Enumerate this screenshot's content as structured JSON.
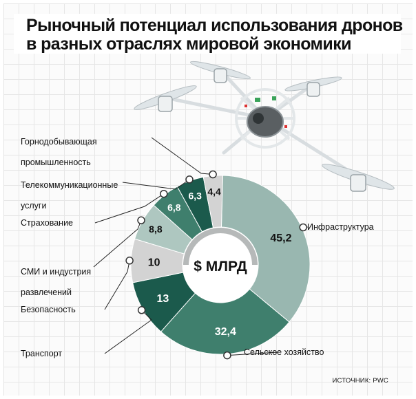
{
  "title_lines": [
    "Рыночный потенциал использования дронов",
    "в разных отраслях мировой экономики"
  ],
  "center_label": "$ МЛРД",
  "source": "ИСТОЧНИК: PWC",
  "chart_data": {
    "type": "donut",
    "title": "Рыночный потенциал использования дронов в разных отраслях мировой экономики",
    "unit": "$ МЛРД",
    "start_angle_deg": 1.5,
    "segments": [
      {
        "label": "Инфраструктура",
        "value": 45.2,
        "value_text": "45,2",
        "color": "#99b7b0",
        "text_color": "#111111"
      },
      {
        "label": "Сельское хозяйство",
        "value": 32.4,
        "value_text": "32,4",
        "color": "#3f7f6d",
        "text_color": "#ffffff"
      },
      {
        "label": "Транспорт",
        "value": 13,
        "value_text": "13",
        "color": "#1b5a4c",
        "text_color": "#ffffff"
      },
      {
        "label": "Безопасность",
        "value": 10,
        "value_text": "10",
        "color": "#d3d3d3",
        "text_color": "#111111"
      },
      {
        "label": "СМИ и индустрия развлечений",
        "label_lines": [
          "СМИ и индустрия",
          "развлечений"
        ],
        "value": 8.8,
        "value_text": "8,8",
        "color": "#aec7c0",
        "text_color": "#111111"
      },
      {
        "label": "Страхование",
        "value": 6.8,
        "value_text": "6,8",
        "color": "#3f7f6d",
        "text_color": "#ffffff"
      },
      {
        "label": "Телекоммуникационные услуги",
        "label_lines": [
          "Телекоммуникационные",
          "услуги"
        ],
        "value": 6.3,
        "value_text": "6,3",
        "color": "#1b5a4c",
        "text_color": "#ffffff"
      },
      {
        "label": "Горнодобывающая промышленность",
        "label_lines": [
          "Горнодобывающая",
          "промышленность"
        ],
        "value": 4.4,
        "value_text": "4,4",
        "color": "#d3d3d3",
        "text_color": "#111111"
      }
    ]
  }
}
